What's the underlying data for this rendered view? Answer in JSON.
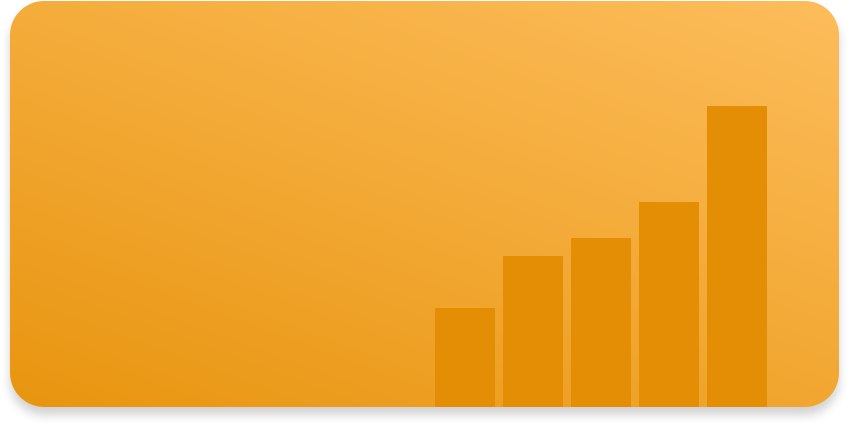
{
  "card": {
    "gradient_start": "#e8950f",
    "gradient_end": "#fdbd5c"
  },
  "chart_data": {
    "type": "bar",
    "values": [
      0.33,
      0.5,
      0.56,
      0.68,
      1.0
    ],
    "bar_color": "#e38e05"
  }
}
